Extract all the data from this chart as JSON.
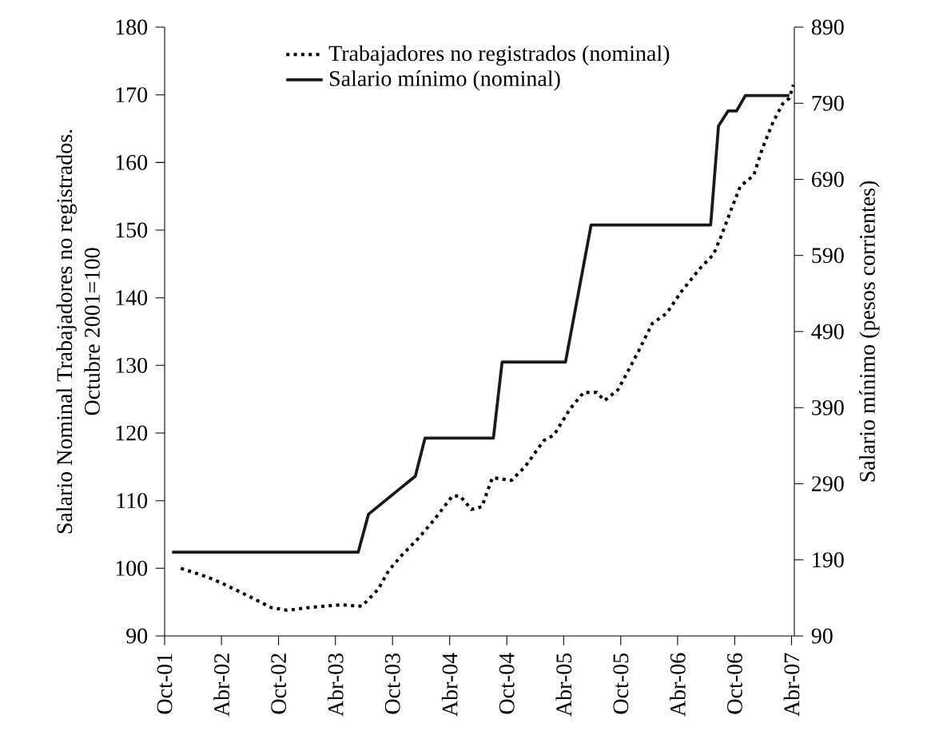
{
  "chart_data": {
    "type": "line",
    "ylabel": "Salario Nominal Trabajadores no registrados. Octubre 2001=100",
    "y2label": "Salario mínimo (pesos corrientes)",
    "xlim": [
      "2001-10-01",
      "2007-04-10"
    ],
    "xticks": [
      {
        "value": "2001-10",
        "label": "Oct-01"
      },
      {
        "value": "2002-04",
        "label": "Abr-02"
      },
      {
        "value": "2002-10",
        "label": "Oct-02"
      },
      {
        "value": "2003-04",
        "label": "Abr-03"
      },
      {
        "value": "2003-10",
        "label": "Oct-03"
      },
      {
        "value": "2004-04",
        "label": "Abr-04"
      },
      {
        "value": "2004-10",
        "label": "Oct-04"
      },
      {
        "value": "2005-04",
        "label": "Abr-05"
      },
      {
        "value": "2005-10",
        "label": "Oct-05"
      },
      {
        "value": "2006-04",
        "label": "Abr-06"
      },
      {
        "value": "2006-10",
        "label": "Oct-06"
      },
      {
        "value": "2007-04",
        "label": "Abr-07"
      }
    ],
    "ylim": [
      90,
      180
    ],
    "yticks": [
      90,
      100,
      110,
      120,
      130,
      140,
      150,
      160,
      170,
      180
    ],
    "y2lim": [
      90,
      890
    ],
    "y2ticks": [
      90,
      190,
      290,
      390,
      490,
      590,
      690,
      790,
      890
    ],
    "legend": "top",
    "series": [
      {
        "name": "Trabajadores no registrados (nominal)",
        "color": "#000000",
        "line_style": "dotted",
        "axis": "y",
        "x": [
          "2001-11-22",
          "2002-02-16",
          "2002-04-07",
          "2002-07-01",
          "2002-09-07",
          "2002-10-28",
          "2003-01-07",
          "2003-04-16",
          "2003-06-25",
          "2003-08-16",
          "2003-09-19",
          "2003-11-01",
          "2003-12-22",
          "2004-02-10",
          "2004-04-10",
          "2004-05-04",
          "2004-06-10",
          "2004-07-13",
          "2004-08-16",
          "2004-10-16",
          "2004-11-28",
          "2005-01-28",
          "2005-03-01",
          "2005-04-22",
          "2005-06-04",
          "2005-07-16",
          "2005-08-10",
          "2005-09-22",
          "2005-10-19",
          "2005-11-28",
          "2006-01-10",
          "2006-02-25",
          "2006-04-13",
          "2006-06-13",
          "2006-07-25",
          "2006-08-22",
          "2006-09-16",
          "2006-10-19",
          "2006-12-01",
          "2006-12-28",
          "2007-02-01",
          "2007-03-04",
          "2007-03-25",
          "2007-04-07"
        ],
        "values": [
          100.0,
          98.7,
          97.7,
          95.8,
          94.2,
          93.8,
          94.2,
          94.6,
          94.4,
          96.9,
          99.7,
          102.0,
          104.4,
          107.1,
          110.7,
          110.7,
          108.7,
          109.1,
          113.4,
          113.0,
          115.0,
          118.9,
          119.7,
          123.6,
          126.0,
          126.0,
          124.8,
          126.4,
          128.7,
          132.2,
          136.2,
          137.7,
          140.9,
          144.4,
          146.4,
          149.5,
          152.6,
          156.5,
          158.1,
          162.0,
          166.0,
          168.7,
          169.5,
          171.5
        ]
      },
      {
        "name": "Salario mínimo (nominal)",
        "color": "#1a1a1a",
        "line_style": "solid",
        "axis": "y2",
        "x": [
          "2001-10-25",
          "2003-06-13",
          "2003-07-16",
          "2003-12-13",
          "2004-01-13",
          "2004-08-19",
          "2004-09-16",
          "2005-04-07",
          "2005-06-28",
          "2006-07-16",
          "2006-08-10",
          "2006-09-10",
          "2006-10-07",
          "2006-11-04",
          "2007-03-25"
        ],
        "values": [
          200,
          200,
          250,
          300,
          350,
          350,
          450,
          450,
          630,
          630,
          760,
          780,
          780,
          800,
          800
        ]
      }
    ]
  }
}
